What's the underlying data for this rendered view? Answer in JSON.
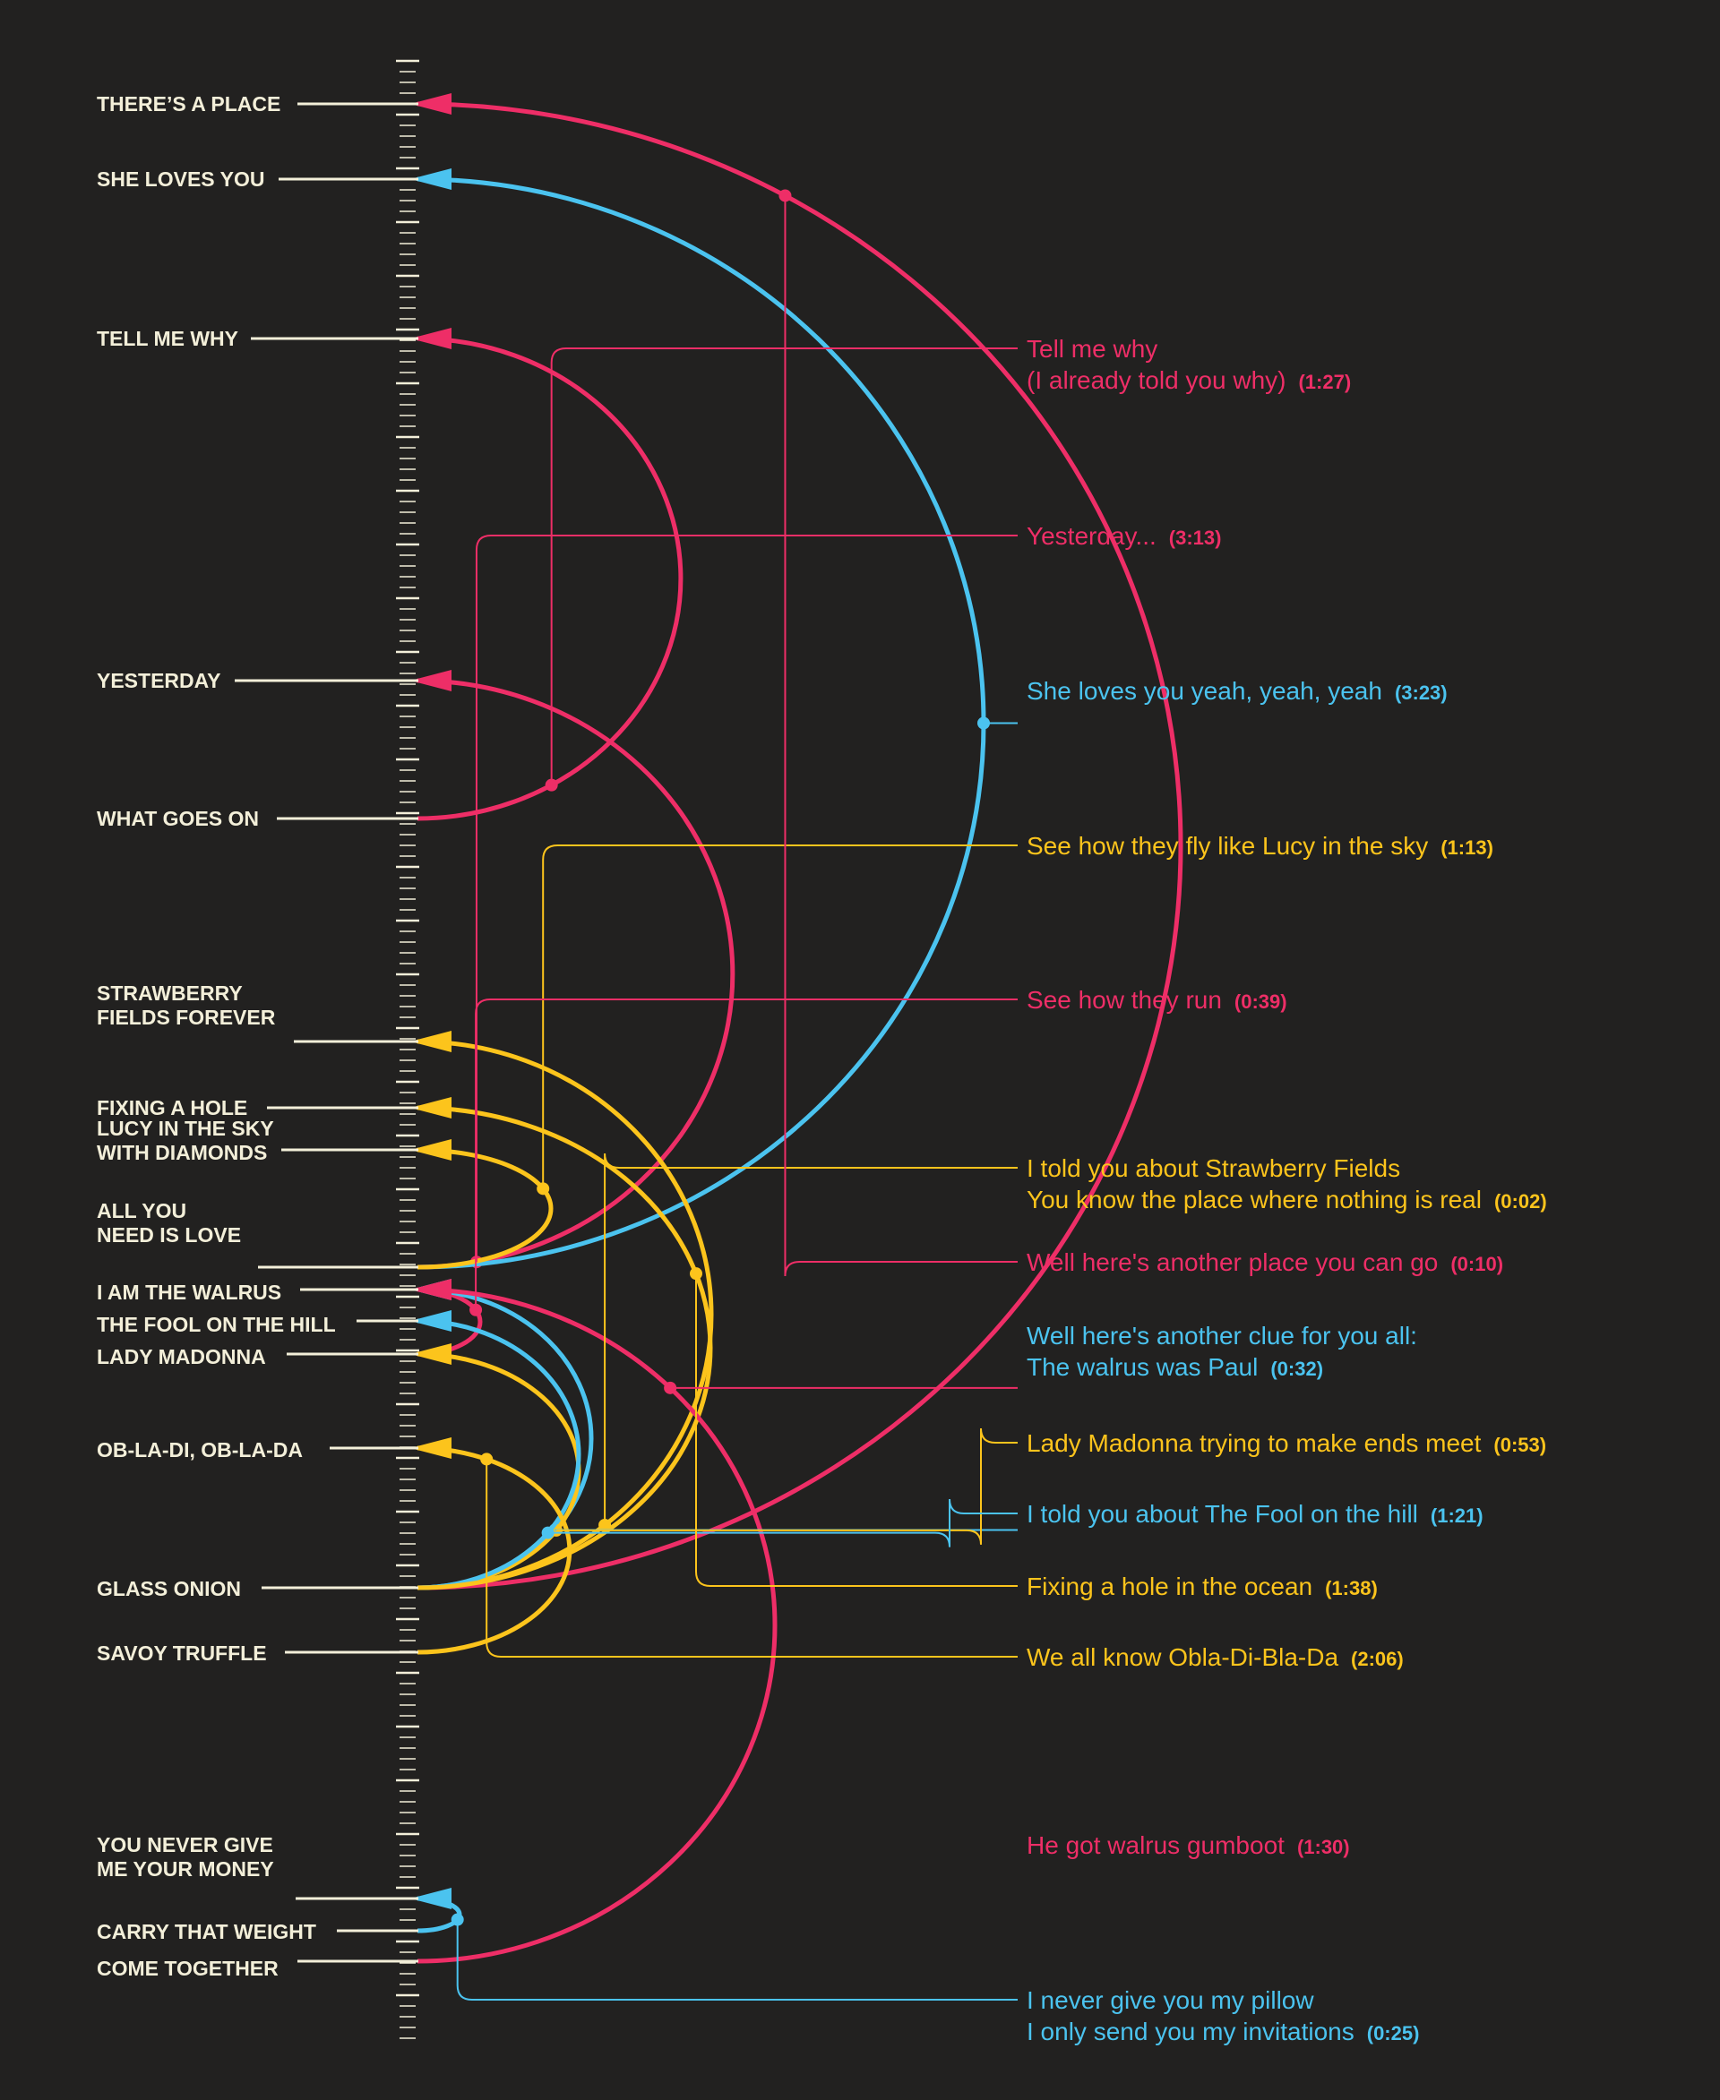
{
  "colors": {
    "background": "#222120",
    "label": "#f3efd9",
    "pink": "#ee2e67",
    "blue": "#4bc3ef",
    "yellow": "#fcc41c"
  },
  "songs": [
    {
      "id": "place",
      "lines": [
        "THERE’S A PLACE"
      ]
    },
    {
      "id": "sheloves",
      "lines": [
        "SHE LOVES YOU"
      ]
    },
    {
      "id": "tellme",
      "lines": [
        "TELL ME WHY"
      ]
    },
    {
      "id": "yesterday",
      "lines": [
        "YESTERDAY"
      ]
    },
    {
      "id": "whatgoes",
      "lines": [
        "WHAT GOES ON"
      ]
    },
    {
      "id": "strawberry",
      "lines": [
        "STRAWBERRY",
        "FIELDS FOREVER"
      ]
    },
    {
      "id": "fixing",
      "lines": [
        "FIXING A HOLE"
      ]
    },
    {
      "id": "lucy",
      "lines": [
        "LUCY IN THE SKY",
        "WITH DIAMONDS"
      ]
    },
    {
      "id": "allyou",
      "lines": [
        "ALL YOU",
        "NEED IS LOVE"
      ]
    },
    {
      "id": "walrus",
      "lines": [
        "I AM THE WALRUS"
      ]
    },
    {
      "id": "fool",
      "lines": [
        "THE FOOL ON THE HILL"
      ]
    },
    {
      "id": "madonna",
      "lines": [
        "LADY MADONNA"
      ]
    },
    {
      "id": "obladi",
      "lines": [
        "OB-LA-DI, OB-LA-DA"
      ]
    },
    {
      "id": "glass",
      "lines": [
        "GLASS ONION"
      ]
    },
    {
      "id": "savoy",
      "lines": [
        "SAVOY TRUFFLE"
      ]
    },
    {
      "id": "nevergive",
      "lines": [
        "YOU NEVER GIVE",
        "ME YOUR MONEY"
      ]
    },
    {
      "id": "carry",
      "lines": [
        "CARRY THAT WEIGHT"
      ]
    },
    {
      "id": "together",
      "lines": [
        "COME TOGETHER"
      ]
    }
  ],
  "references": [
    {
      "from": "whatgoes",
      "to": "tellme",
      "color": "pink",
      "lines": [
        "Tell me why",
        "(I already told you why)"
      ],
      "time": "(1:27)"
    },
    {
      "from": "allyou",
      "to": "yesterday",
      "color": "pink",
      "lines": [
        "Yesterday..."
      ],
      "time": "(3:13)"
    },
    {
      "from": "allyou",
      "to": "sheloves",
      "color": "blue",
      "lines": [
        "She loves you yeah, yeah, yeah"
      ],
      "time": "(3:23)"
    },
    {
      "from": "allyou",
      "to": "lucy",
      "color": "yellow",
      "lines": [
        "See how they fly like Lucy in the sky"
      ],
      "time": "(1:13)"
    },
    {
      "from": "madonna",
      "to": "walrus",
      "color": "pink",
      "lines": [
        "See how they run"
      ],
      "time": "(0:39)"
    },
    {
      "from": "glass",
      "to": "strawberry",
      "color": "yellow",
      "lines": [
        "I told you about Strawberry Fields",
        "You know the place where nothing is real"
      ],
      "time": "(0:02)"
    },
    {
      "from": "glass",
      "to": "place",
      "color": "pink",
      "lines": [
        "Well here's another place you can go"
      ],
      "time": "(0:10)"
    },
    {
      "from": "glass",
      "to": "walrus",
      "color": "blue",
      "lines": [
        "Well here's another clue for you all:",
        "The walrus was Paul"
      ],
      "time": "(0:32)"
    },
    {
      "from": "glass",
      "to": "madonna",
      "color": "yellow",
      "lines": [
        "Lady Madonna trying to make ends meet"
      ],
      "time": "(0:53)"
    },
    {
      "from": "glass",
      "to": "fool",
      "color": "blue",
      "lines": [
        "I told you about The Fool on the hill"
      ],
      "time": "(1:21)"
    },
    {
      "from": "glass",
      "to": "fixing",
      "color": "yellow",
      "lines": [
        "Fixing a hole in the ocean"
      ],
      "time": "(1:38)"
    },
    {
      "from": "savoy",
      "to": "obladi",
      "color": "yellow",
      "lines": [
        "We all know Obla-Di-Bla-Da"
      ],
      "time": "(2:06)"
    },
    {
      "from": "together",
      "to": "walrus",
      "color": "pink",
      "lines": [
        "He got walrus gumboot"
      ],
      "time": "(1:30)"
    },
    {
      "from": "carry",
      "to": "nevergive",
      "color": "blue",
      "lines": [
        "I never give you my pillow",
        "I only send you my invitations"
      ],
      "time": "(0:25)"
    }
  ]
}
